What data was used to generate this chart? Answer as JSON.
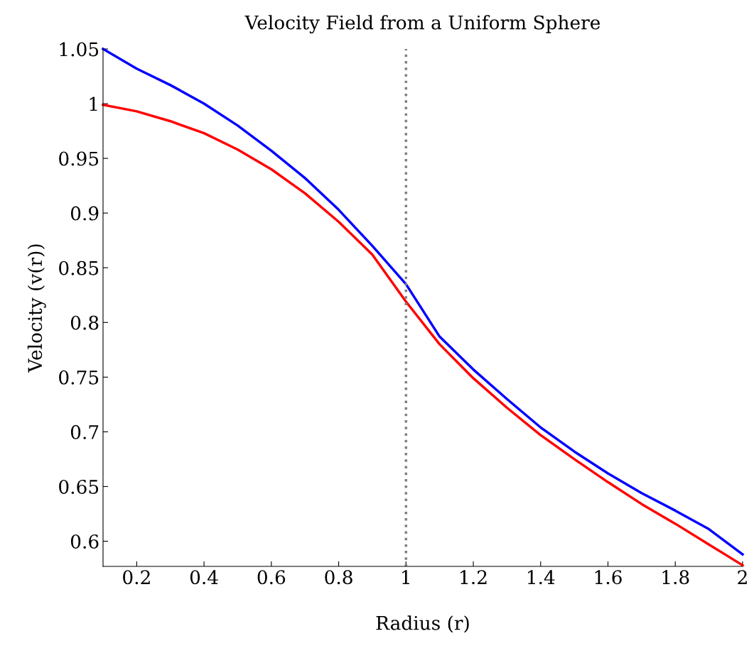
{
  "chart_data": {
    "type": "line",
    "title": "Velocity Field from a Uniform Sphere",
    "xlabel": "Radius (r)",
    "ylabel": "Velocity (v(r))",
    "x": [
      0.1,
      0.2,
      0.3,
      0.4,
      0.5,
      0.6,
      0.7,
      0.8,
      0.9,
      1,
      1.1,
      1.2,
      1.3,
      1.4,
      1.5,
      1.6,
      1.7,
      1.8,
      1.9,
      2
    ],
    "series": [
      {
        "color": "#0000ff",
        "values": [
          1.05,
          1.032,
          1.017,
          1.0,
          0.98,
          0.957,
          0.932,
          0.903,
          0.87,
          0.835,
          0.787,
          0.757,
          0.73,
          0.704,
          0.682,
          0.662,
          0.644,
          0.628,
          0.611,
          0.588
        ]
      },
      {
        "color": "#ff0000",
        "values": [
          0.999,
          0.993,
          0.984,
          0.973,
          0.958,
          0.94,
          0.918,
          0.892,
          0.862,
          0.819,
          0.78,
          0.749,
          0.722,
          0.697,
          0.675,
          0.654,
          0.634,
          0.616,
          0.597,
          0.578
        ]
      }
    ],
    "xlim": [
      0.1,
      2
    ],
    "ylim": [
      0.577,
      1.05
    ],
    "xticks": [
      0.2,
      0.4,
      0.6,
      0.8,
      1,
      1.2,
      1.4,
      1.6,
      1.8,
      2
    ],
    "yticks": [
      0.6,
      0.65,
      0.7,
      0.75,
      0.8,
      0.85,
      0.9,
      0.95,
      1,
      1.05
    ],
    "ref_lines": [
      {
        "axis": "x",
        "value": 1,
        "color": "#808080",
        "line_style": "dotted"
      }
    ],
    "grid": false,
    "line_style": "solid"
  }
}
